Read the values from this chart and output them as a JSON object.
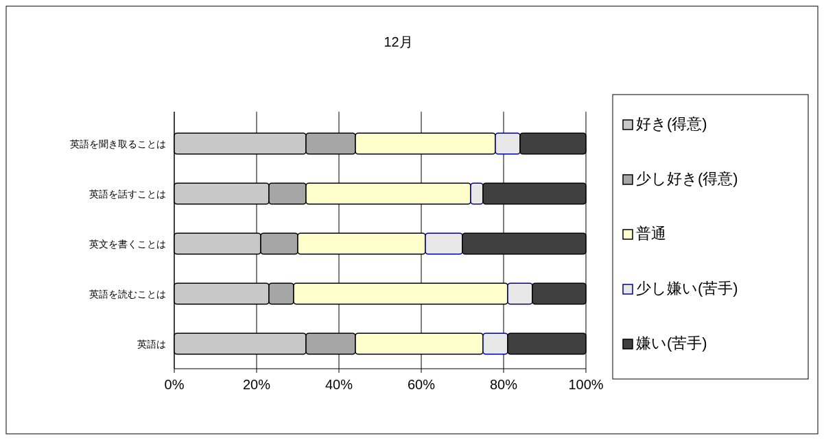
{
  "chart_data": {
    "type": "bar",
    "orientation": "horizontal",
    "stacked": true,
    "title": "12月",
    "categories": [
      "英語を聞き取ることは",
      "英語を話すことは",
      "英文を書くことは",
      "英語を読むことは",
      "英語は"
    ],
    "series": [
      {
        "name": "好き(得意)",
        "color": "#c8c8c8",
        "values": [
          32,
          23,
          21,
          23,
          32
        ]
      },
      {
        "name": "少し好き(得意)",
        "color": "#a6a6a6",
        "values": [
          12,
          9,
          9,
          6,
          12
        ]
      },
      {
        "name": "普通",
        "color": "#ffffcc",
        "values": [
          34,
          40,
          31,
          52,
          31
        ]
      },
      {
        "name": "少し嫌い(苦手)",
        "color": "#e8e8e8",
        "values": [
          6,
          3,
          9,
          6,
          6
        ]
      },
      {
        "name": "嫌い(苦手)",
        "color": "#404040",
        "values": [
          16,
          25,
          30,
          13,
          19
        ]
      }
    ],
    "xlim": [
      0,
      100
    ],
    "xticks": [
      {
        "value": 0,
        "label": "0%"
      },
      {
        "value": 20,
        "label": "20%"
      },
      {
        "value": 40,
        "label": "40%"
      },
      {
        "value": 60,
        "label": "60%"
      },
      {
        "value": 80,
        "label": "80%"
      },
      {
        "value": 100,
        "label": "100%"
      }
    ],
    "grid": "x",
    "legend": "right"
  }
}
